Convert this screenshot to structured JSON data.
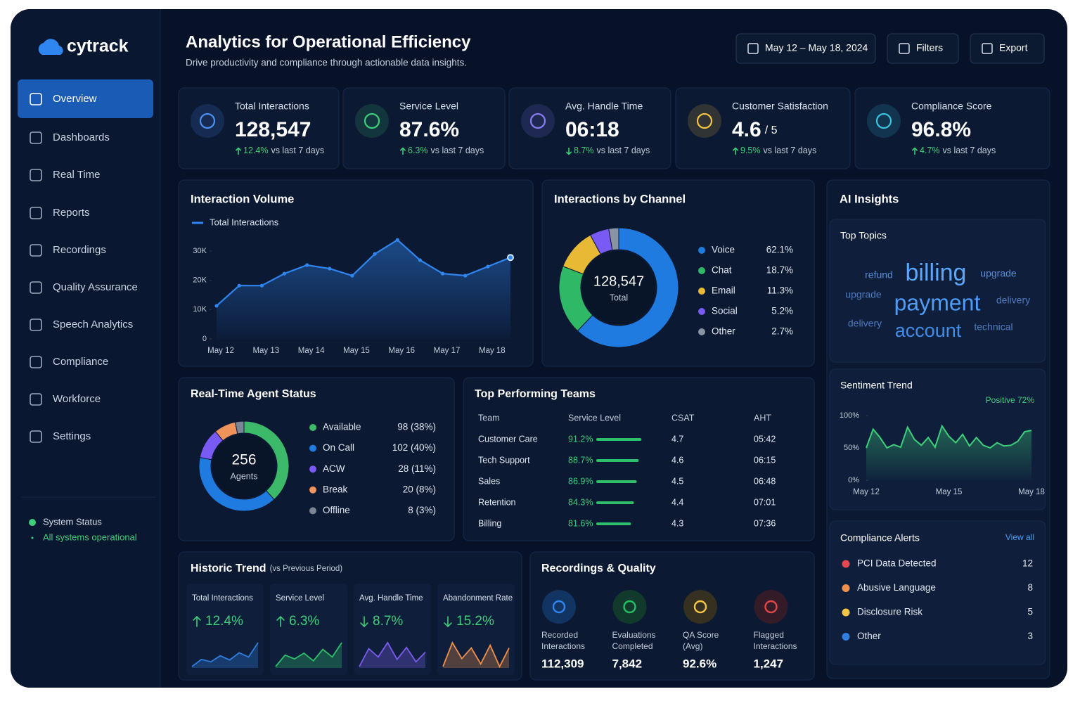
{
  "brand": "cytrack",
  "nav": [
    "Overview",
    "Dashboards",
    "Real Time",
    "Reports",
    "Recordings",
    "Quality Assurance",
    "Speech Analytics",
    "Compliance",
    "Workforce",
    "Settings"
  ],
  "system_status": {
    "title": "System Status",
    "text": "All systems operational"
  },
  "header": {
    "title": "Analytics for Operational Efficiency",
    "subtitle": "Drive productivity and compliance through actionable data insights.",
    "buttons": [
      "May 12 – May 18, 2024",
      "Filters",
      "Export"
    ]
  },
  "kpis": [
    {
      "label": "Total Interactions",
      "value": "128,547",
      "direction": "up",
      "change": "12.4%",
      "compare": "vs last 7 days",
      "color": "#4f8ff0"
    },
    {
      "label": "Service Level",
      "value": "87.6%",
      "direction": "up",
      "change": "6.3%",
      "compare": "vs last 7 days",
      "color": "#3ecf7a"
    },
    {
      "label": "Avg. Handle Time",
      "value": "06:18",
      "direction": "down",
      "change": "8.7%",
      "compare": "vs last 7 days",
      "color": "#8a7cf5"
    },
    {
      "label": "Customer Satisfaction",
      "value": "4.6",
      "suffix": "/ 5",
      "direction": "up",
      "change": "9.5%",
      "compare": "vs last 7 days",
      "color": "#f5c542"
    },
    {
      "label": "Compliance Score",
      "value": "96.8%",
      "direction": "up",
      "change": "4.7%",
      "compare": "vs last 7 days",
      "color": "#3cc6e0"
    }
  ],
  "interaction_volume": {
    "type": "line",
    "title": "Interaction Volume",
    "categories": [
      "May 12",
      null,
      "May 13",
      null,
      "May 14",
      null,
      "May 15",
      null,
      "May 16",
      null,
      "May 17",
      null,
      "May 18",
      null
    ],
    "series": [
      {
        "name": "Total Interactions",
        "color": "#2f86f0",
        "values": [
          11300,
          18200,
          18200,
          22300,
          25200,
          24000,
          21600,
          29000,
          33800,
          26900,
          22300,
          21600,
          24700,
          27800
        ]
      }
    ],
    "ylim": [
      0,
      35000
    ],
    "yticks": [
      0,
      {
        "value": 10000,
        "label": "10K"
      },
      {
        "value": 20000,
        "label": "20K"
      },
      {
        "value": 30000,
        "label": "30K"
      }
    ]
  },
  "channels": {
    "type": "pie",
    "title": "Interactions by Channel",
    "center_value": "128,547",
    "center_label": "Total",
    "categories": [
      "Voice",
      "Chat",
      "Email",
      "Social",
      "Other"
    ],
    "values": [
      62.1,
      18.7,
      11.3,
      5.2,
      2.7
    ],
    "value_labels": [
      "62.1%",
      "18.7%",
      "11.3%",
      "5.2%",
      "2.7%"
    ],
    "colors": [
      "#1f7be0",
      "#2fb866",
      "#e8b934",
      "#7a5af5",
      "#8a93a3"
    ]
  },
  "ai_insights": {
    "title": "AI Insights",
    "top_topics": {
      "title": "Top Topics",
      "words": [
        "refund",
        "billing",
        "upgrade",
        "upgrade",
        "payment",
        "delivery",
        "delivery",
        "account",
        "technical"
      ]
    },
    "sentiment": {
      "type": "line",
      "title": "Sentiment Trend",
      "annotation": "Positive 72%",
      "categories": [
        "May 12",
        null,
        null,
        null,
        null,
        null,
        null,
        null,
        null,
        null,
        null,
        null,
        "May 15",
        null,
        null,
        null,
        null,
        null,
        null,
        null,
        null,
        null,
        null,
        null,
        "May 18"
      ],
      "values": [
        50,
        79,
        66,
        50,
        55,
        51,
        82,
        63,
        54,
        66,
        51,
        84,
        68,
        58,
        71,
        53,
        66,
        54,
        50,
        58,
        53,
        54,
        60,
        75,
        77
      ],
      "color": "#3ecf7a",
      "ylim": [
        0,
        100
      ],
      "yticks": [
        {
          "value": 0,
          "label": "0%"
        },
        {
          "value": 50,
          "label": "50%"
        },
        {
          "value": 100,
          "label": "100%"
        }
      ]
    },
    "compliance_alerts": {
      "title": "Compliance Alerts",
      "link": "View all",
      "rows": [
        {
          "name": "PCI Data Detected",
          "count": "12",
          "color": "#e5484d"
        },
        {
          "name": "Abusive Language",
          "count": "8",
          "color": "#f0904a"
        },
        {
          "name": "Disclosure Risk",
          "count": "5",
          "color": "#f5c542"
        },
        {
          "name": "Other",
          "count": "3",
          "color": "#2f7fe0"
        }
      ]
    }
  },
  "agent_status": {
    "type": "pie",
    "title": "Real-Time Agent Status",
    "center_value": "256",
    "center_label": "Agents",
    "categories": [
      "Available",
      "On Call",
      "ACW",
      "Break",
      "Offline"
    ],
    "values": [
      98,
      102,
      28,
      20,
      8
    ],
    "value_labels": [
      "98 (38%)",
      "102 (40%)",
      "28 (11%)",
      "20  (8%)",
      "8  (3%)"
    ],
    "colors": [
      "#3cba6a",
      "#1f7be0",
      "#7a5af5",
      "#f0935a",
      "#7b8596"
    ]
  },
  "top_teams": {
    "title": "Top Performing Teams",
    "columns": [
      "Team",
      "Service Level",
      "CSAT",
      "AHT"
    ],
    "xlim": [
      50,
      100
    ],
    "rows": [
      {
        "team": "Customer Care",
        "service_level": 91.2,
        "service_level_label": "91.2%",
        "csat": "4.7",
        "aht": "05:42"
      },
      {
        "team": "Tech Support",
        "service_level": 88.7,
        "service_level_label": "88.7%",
        "csat": "4.6",
        "aht": "06:15"
      },
      {
        "team": "Sales",
        "service_level": 86.9,
        "service_level_label": "86.9%",
        "csat": "4.5",
        "aht": "06:48"
      },
      {
        "team": "Retention",
        "service_level": 84.3,
        "service_level_label": "84.3%",
        "csat": "4.4",
        "aht": "07:01"
      },
      {
        "team": "Billing",
        "service_level": 81.6,
        "service_level_label": "81.6%",
        "csat": "4.3",
        "aht": "07:36"
      }
    ]
  },
  "historic_trend": {
    "title": "Historic Trend",
    "subtitle": "(vs Previous Period)",
    "cards": [
      {
        "label": "Total Interactions",
        "direction": "up",
        "change": "12.4%",
        "color": "#2f7fe0",
        "values": [
          22,
          34,
          30,
          40,
          33,
          45,
          38,
          62
        ]
      },
      {
        "label": "Service Level",
        "direction": "up",
        "change": "6.3%",
        "color": "#2fbf6a",
        "values": [
          30,
          42,
          38,
          44,
          36,
          48,
          40,
          55
        ]
      },
      {
        "label": "Avg. Handle Time",
        "direction": "down",
        "change": "8.7%",
        "color": "#7c5cf0",
        "values": [
          30,
          45,
          38,
          50,
          36,
          46,
          34,
          42
        ]
      },
      {
        "label": "Abandonment Rate",
        "direction": "down",
        "change": "15.2%",
        "color": "#f0904a",
        "values": [
          30,
          48,
          36,
          44,
          32,
          46,
          30,
          44
        ]
      }
    ]
  },
  "recordings": {
    "title": "Recordings & Quality",
    "items": [
      {
        "label": [
          "Recorded",
          "Interactions"
        ],
        "value": "112,309",
        "color": "#2f86f0",
        "bg": "#113462"
      },
      {
        "label": [
          "Evaluations",
          "Completed"
        ],
        "value": "7,842",
        "color": "#22c065",
        "bg": "#123a2c"
      },
      {
        "label": [
          "QA Score",
          "(Avg)"
        ],
        "value": "92.6%",
        "color": "#f5c542",
        "bg": "#363020"
      },
      {
        "label": [
          "Flagged",
          "Interactions"
        ],
        "value": "1,247",
        "color": "#e04848",
        "bg": "#341b28"
      }
    ]
  }
}
